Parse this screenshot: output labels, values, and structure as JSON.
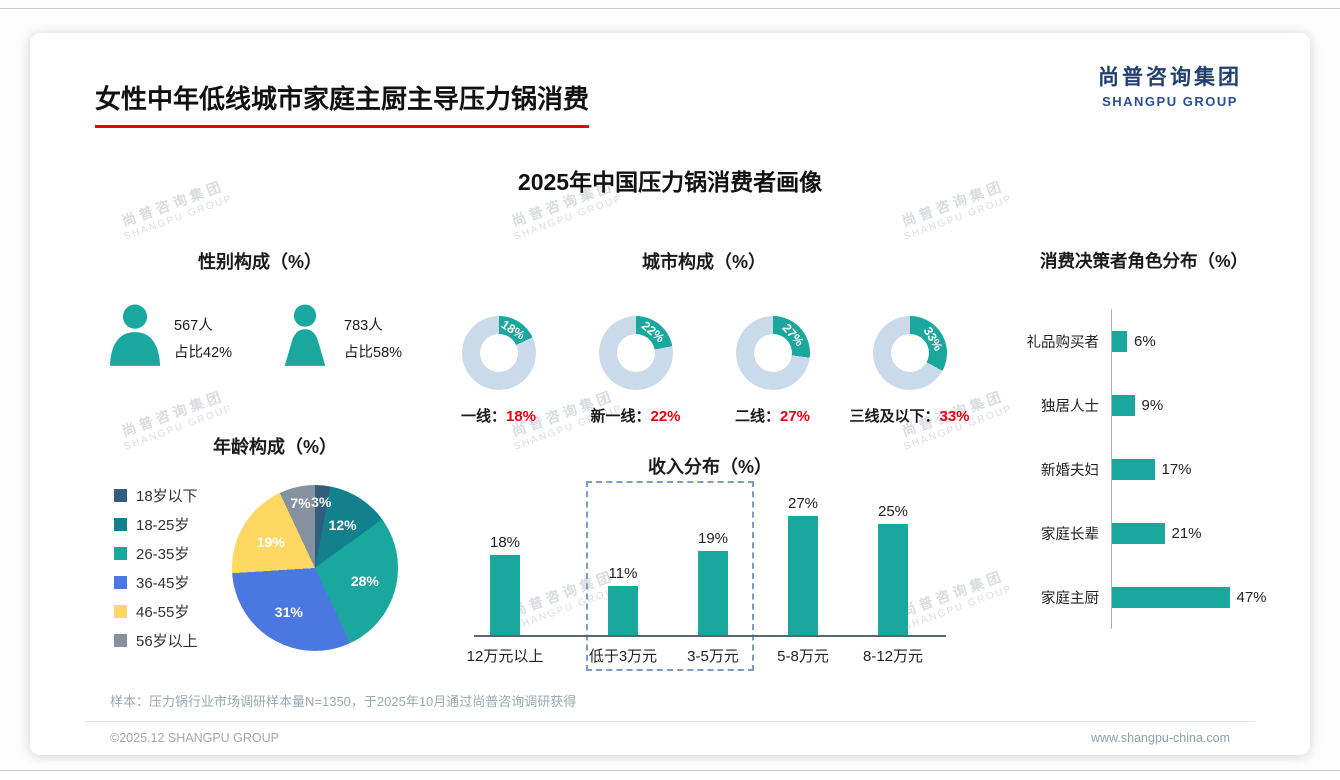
{
  "page": {
    "title": "女性中年低线城市家庭主厨主导压力锅消费",
    "subtitle": "2025年中国压力锅消费者画像",
    "logo": {
      "cn": "尚普咨询集团",
      "en": "SHANGPU GROUP"
    },
    "watermark": {
      "cn": "尚普咨询集团",
      "en": "SHANGPU GROUP"
    },
    "footnote": "样本：压力锅行业市场调研样本量N=1350，于2025年10月通过尚普咨询调研获得",
    "copyright": "©2025.12 SHANGPU GROUP",
    "website": "www.shangpu-china.com"
  },
  "colors": {
    "teal": "#1AA79D",
    "red": "#E60012",
    "navy": "#21406F",
    "donut_rest": "#CBDAEA"
  },
  "chart_data": [
    {
      "id": "gender",
      "type": "pictogram",
      "title": "性别构成（%）",
      "items": [
        {
          "gender": "male",
          "count": "567人",
          "share": "占比42%"
        },
        {
          "gender": "female",
          "count": "783人",
          "share": "占比58%"
        }
      ]
    },
    {
      "id": "city",
      "type": "donut",
      "title": "城市构成（%）",
      "items": [
        {
          "label": "一线：",
          "value": 18,
          "display": "18%"
        },
        {
          "label": "新一线：",
          "value": 22,
          "display": "22%"
        },
        {
          "label": "二线：",
          "value": 27,
          "display": "27%"
        },
        {
          "label": "三线及以下：",
          "value": 33,
          "display": "33%"
        }
      ]
    },
    {
      "id": "decision-roles",
      "type": "bar",
      "orientation": "horizontal",
      "title": "消费决策者角色分布（%）",
      "categories": [
        "礼品购买者",
        "独居人士",
        "新婚夫妇",
        "家庭长辈",
        "家庭主厨"
      ],
      "values": [
        6,
        9,
        17,
        21,
        47
      ],
      "value_labels": [
        "6%",
        "9%",
        "17%",
        "21%",
        "47%"
      ],
      "xlim": [
        0,
        50
      ]
    },
    {
      "id": "age",
      "type": "pie",
      "title": "年龄构成（%）",
      "categories": [
        "18岁以下",
        "18-25岁",
        "26-35岁",
        "36-45岁",
        "46-55岁",
        "56岁以上"
      ],
      "values": [
        3,
        12,
        28,
        31,
        19,
        7
      ],
      "value_labels": [
        "3%",
        "12%",
        "28%",
        "31%",
        "19%",
        "7%"
      ],
      "colors": [
        "#315E7D",
        "#12808D",
        "#1AA79D",
        "#4A78E0",
        "#FFD763",
        "#8492A0"
      ],
      "legend_position": "left"
    },
    {
      "id": "income",
      "type": "bar",
      "orientation": "vertical",
      "title": "收入分布（%）",
      "categories": [
        "低于3万元",
        "3-5万元",
        "5-8万元",
        "8-12万元",
        "12万元以上"
      ],
      "values": [
        11,
        19,
        27,
        25,
        18
      ],
      "value_labels": [
        "11%",
        "19%",
        "27%",
        "25%",
        "18%"
      ],
      "highlight_categories": [
        "3-5万元",
        "5-8万元"
      ]
    }
  ]
}
